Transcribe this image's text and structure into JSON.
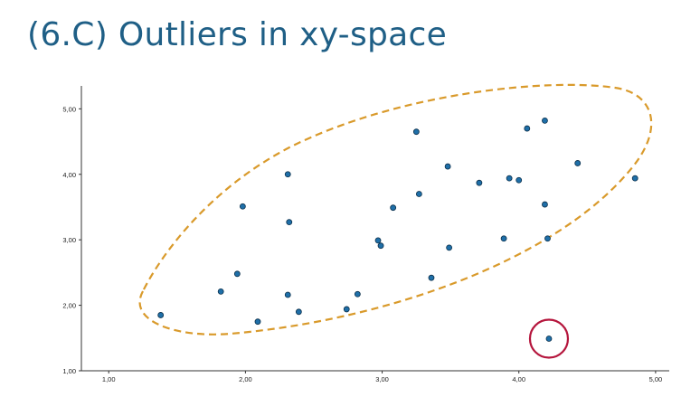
{
  "slide": {
    "title": "(6.C) Outliers in xy-space"
  },
  "chart_data": {
    "type": "scatter",
    "title": "",
    "xlabel": "",
    "ylabel": "",
    "xlim": [
      0.8,
      5.1
    ],
    "ylim": [
      1.0,
      5.35
    ],
    "x_ticks": [
      {
        "value": 1.0,
        "label": "1,00"
      },
      {
        "value": 2.0,
        "label": "2,00"
      },
      {
        "value": 3.0,
        "label": "3,00"
      },
      {
        "value": 4.0,
        "label": "4,00"
      },
      {
        "value": 5.0,
        "label": "5,00"
      }
    ],
    "y_ticks": [
      {
        "value": 1.0,
        "label": "1,00"
      },
      {
        "value": 2.0,
        "label": "2,00"
      },
      {
        "value": 3.0,
        "label": "3,00"
      },
      {
        "value": 4.0,
        "label": "4,00"
      },
      {
        "value": 5.0,
        "label": "5,00"
      }
    ],
    "grid": false,
    "point_color": "#1f6fa8",
    "ellipse_color": "#d99a2b",
    "outlier_marker_color": "#b5163d",
    "points": [
      {
        "x": 1.38,
        "y": 1.85
      },
      {
        "x": 1.82,
        "y": 2.21
      },
      {
        "x": 1.94,
        "y": 2.48
      },
      {
        "x": 1.98,
        "y": 3.51
      },
      {
        "x": 2.09,
        "y": 1.75
      },
      {
        "x": 2.31,
        "y": 2.16
      },
      {
        "x": 2.31,
        "y": 4.0
      },
      {
        "x": 2.32,
        "y": 3.27
      },
      {
        "x": 2.39,
        "y": 1.9
      },
      {
        "x": 2.74,
        "y": 1.94
      },
      {
        "x": 2.82,
        "y": 2.17
      },
      {
        "x": 2.97,
        "y": 2.99
      },
      {
        "x": 2.99,
        "y": 2.91
      },
      {
        "x": 3.08,
        "y": 3.49
      },
      {
        "x": 3.25,
        "y": 4.65
      },
      {
        "x": 3.27,
        "y": 3.7
      },
      {
        "x": 3.36,
        "y": 2.42
      },
      {
        "x": 3.48,
        "y": 4.12
      },
      {
        "x": 3.49,
        "y": 2.88
      },
      {
        "x": 3.71,
        "y": 3.87
      },
      {
        "x": 3.89,
        "y": 3.02
      },
      {
        "x": 3.93,
        "y": 3.94
      },
      {
        "x": 4.0,
        "y": 3.91
      },
      {
        "x": 4.06,
        "y": 4.7
      },
      {
        "x": 4.19,
        "y": 3.54
      },
      {
        "x": 4.19,
        "y": 4.82
      },
      {
        "x": 4.21,
        "y": 3.02
      },
      {
        "x": 4.22,
        "y": 1.49
      },
      {
        "x": 4.43,
        "y": 4.17
      },
      {
        "x": 4.85,
        "y": 3.94
      }
    ],
    "outlier": {
      "x": 4.22,
      "y": 1.49
    }
  }
}
